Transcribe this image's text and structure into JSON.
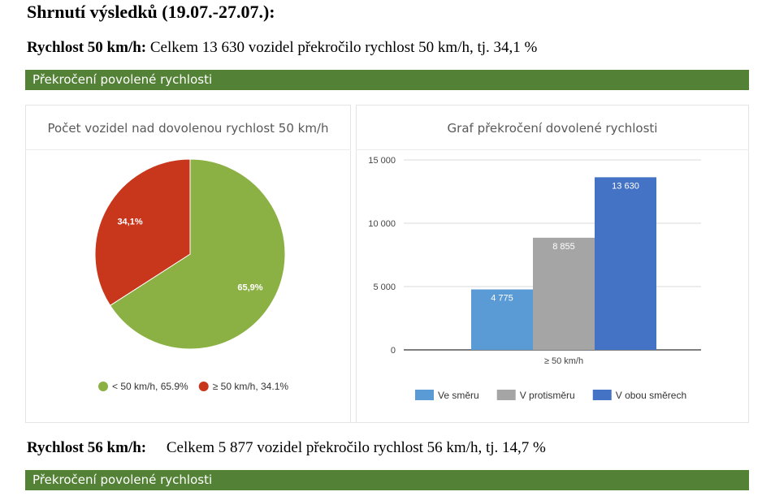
{
  "heading": "Shrnutí výsledků (19.07.-27.07.):",
  "section1": {
    "label": "Rychlost 50 km/h:",
    "text": "Celkem 13 630 vozidel překročilo rychlost 50 km/h, tj. 34,1 %",
    "bar_title": "Překročení povolené rychlosti"
  },
  "section2": {
    "label": "Rychlost 56 km/h:",
    "text": "Celkem 5 877 vozidel překročilo rychlost 56 km/h, tj. 14,7 %",
    "bar_title": "Překročení povolené rychlosti"
  },
  "chart_data": [
    {
      "type": "pie",
      "title": "Počet vozidel nad dovolenou rychlost 50 km/h",
      "slices": [
        {
          "label": "< 50 km/h",
          "value": 65.9,
          "display": "65,9%",
          "legend": "< 50 km/h, 65.9%",
          "color": "#8bb043"
        },
        {
          "label": "≥ 50 km/h",
          "value": 34.1,
          "display": "34,1%",
          "legend": "≥ 50 km/h, 34.1%",
          "color": "#c8361c"
        }
      ],
      "legend_position": "bottom"
    },
    {
      "type": "bar",
      "title": "Graf překročení dovolené rychlosti",
      "categories": [
        "≥ 50 km/h"
      ],
      "series": [
        {
          "name": "Ve směru",
          "values": [
            4775
          ],
          "labels": [
            "4 775"
          ],
          "color": "#5b9bd5"
        },
        {
          "name": "V protisměru",
          "values": [
            8855
          ],
          "labels": [
            "8 855"
          ],
          "color": "#a5a5a5"
        },
        {
          "name": "V obou směrech",
          "values": [
            13630
          ],
          "labels": [
            "13 630"
          ],
          "color": "#4472c4"
        }
      ],
      "yticks": [
        0,
        5000,
        10000,
        15000
      ],
      "ytick_labels": [
        "0",
        "5 000",
        "10 000",
        "15 000"
      ],
      "ylim": [
        0,
        15000
      ],
      "grid": true,
      "legend_position": "bottom"
    }
  ]
}
